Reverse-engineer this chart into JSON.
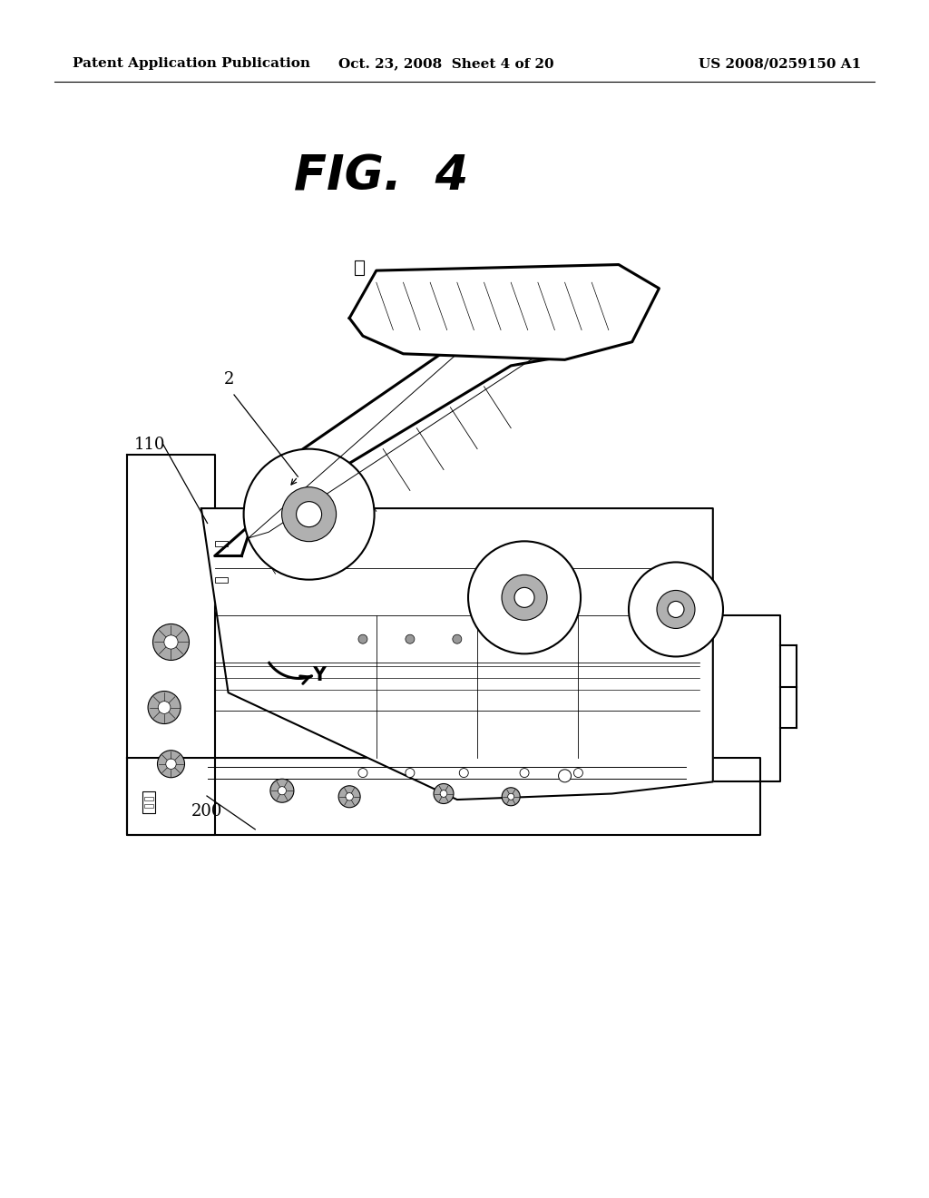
{
  "background_color": "#ffffff",
  "header_left": "Patent Application Publication",
  "header_center": "Oct. 23, 2008  Sheet 4 of 20",
  "header_right": "US 2008/0259150 A1",
  "header_fontsize": 11,
  "fig_label": "FIG.  4",
  "fig_label_fontsize": 38,
  "label_2": "2",
  "label_110": "110",
  "label_Y": "Y",
  "label_200": "200"
}
